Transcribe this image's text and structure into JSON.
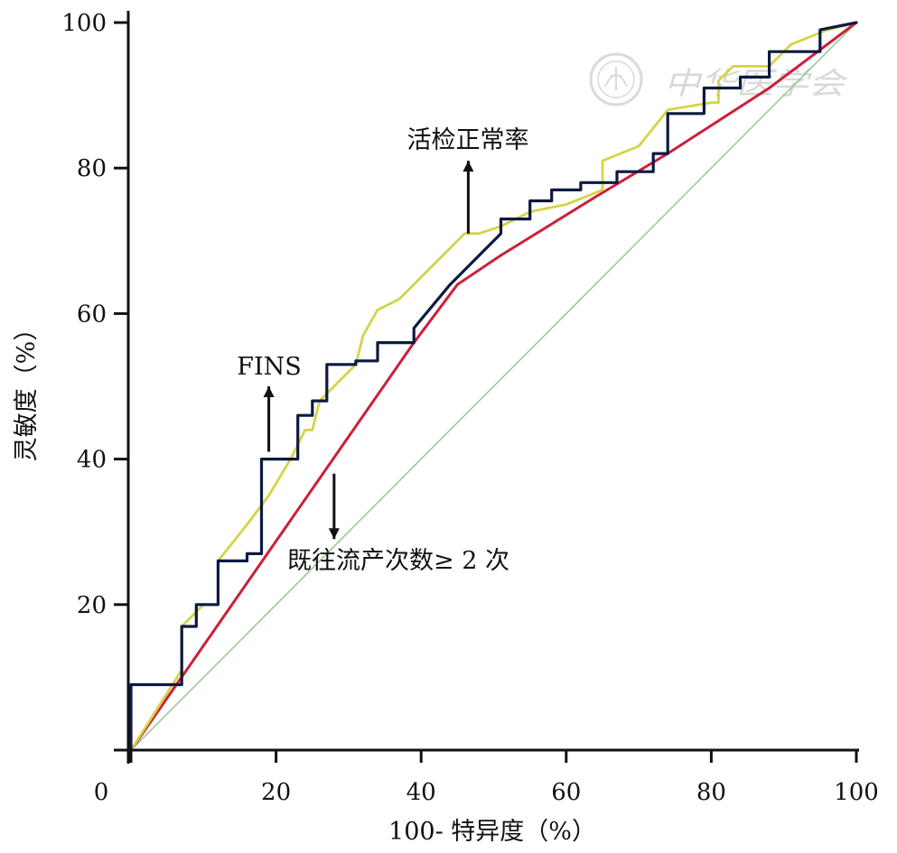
{
  "chart_data": {
    "type": "line",
    "title": "",
    "xlabel": "100- 特异度（%）",
    "ylabel": "灵敏度（%）",
    "xlim": [
      0,
      100
    ],
    "ylim": [
      0,
      100
    ],
    "xticks": [
      "0",
      "20",
      "40",
      "60",
      "80",
      "100"
    ],
    "yticks": [
      "20",
      "40",
      "60",
      "80",
      "100"
    ],
    "grid": false,
    "legend": "none",
    "watermark": "中华医学会",
    "annotations": [
      {
        "text": "活检正常率",
        "x": 46.5,
        "y": 81,
        "arrow": "up",
        "arrow_from": [
          46.5,
          71
        ],
        "arrow_to": [
          46.5,
          81
        ]
      },
      {
        "text": "FINS",
        "x": 19,
        "y": 52,
        "arrow": "up",
        "arrow_from": [
          19,
          41
        ],
        "arrow_to": [
          19,
          50
        ]
      },
      {
        "text": "既往流产次数≥ 2 次",
        "x": 28,
        "y": 27,
        "arrow": "down",
        "arrow_from": [
          28,
          38
        ],
        "arrow_to": [
          28,
          29
        ]
      }
    ],
    "series": [
      {
        "name": "",
        "color": "#0c1a40",
        "interpolation": "step",
        "x": [
          0,
          0,
          7,
          7,
          7,
          9,
          9,
          12,
          12,
          16,
          16,
          18,
          18,
          23,
          23,
          25,
          25,
          27,
          27,
          31,
          31,
          34,
          34,
          39,
          39,
          44,
          47,
          51,
          51,
          55,
          55,
          58,
          58,
          62,
          62,
          67,
          67,
          72,
          72,
          74,
          74,
          79,
          79,
          84,
          84,
          88,
          88,
          95,
          95,
          100
        ],
        "y": [
          0,
          9,
          9,
          10,
          17,
          17,
          20,
          20,
          26,
          26,
          27,
          27,
          40,
          40,
          46,
          46,
          48,
          48,
          53,
          53,
          53.5,
          53.5,
          56,
          56,
          58,
          64,
          67,
          71,
          73,
          73,
          75.5,
          75.5,
          77,
          77,
          78,
          78,
          79.5,
          79.5,
          82,
          82,
          87.5,
          87.5,
          91,
          91,
          92.5,
          92.5,
          96,
          96,
          99,
          100
        ]
      },
      {
        "name": "",
        "color": "#d4d448",
        "interpolation": "linear",
        "x": [
          0,
          7,
          7,
          8,
          10,
          12,
          12,
          16,
          19,
          22,
          24,
          25,
          26,
          31,
          32,
          34,
          37,
          46,
          48,
          51,
          55,
          60,
          65,
          65,
          70,
          74,
          80,
          81,
          81,
          83,
          88,
          91,
          96,
          100
        ],
        "y": [
          0,
          11,
          17,
          18,
          20,
          20,
          26,
          31,
          35,
          40,
          44,
          44,
          48,
          53,
          57,
          60.5,
          62,
          71,
          71,
          72,
          74,
          75,
          77,
          81,
          83,
          88,
          89,
          89,
          92,
          94,
          94,
          97,
          99,
          100
        ]
      },
      {
        "name": "",
        "color": "#cc1f3a",
        "interpolation": "linear",
        "x": [
          0,
          39,
          45,
          51,
          64,
          74,
          88,
          100
        ],
        "y": [
          0,
          56,
          64,
          68,
          76,
          82,
          91,
          100
        ]
      },
      {
        "name": "",
        "color": "#8fc48f",
        "interpolation": "linear",
        "x": [
          0,
          100
        ],
        "y": [
          0,
          100
        ]
      }
    ]
  }
}
